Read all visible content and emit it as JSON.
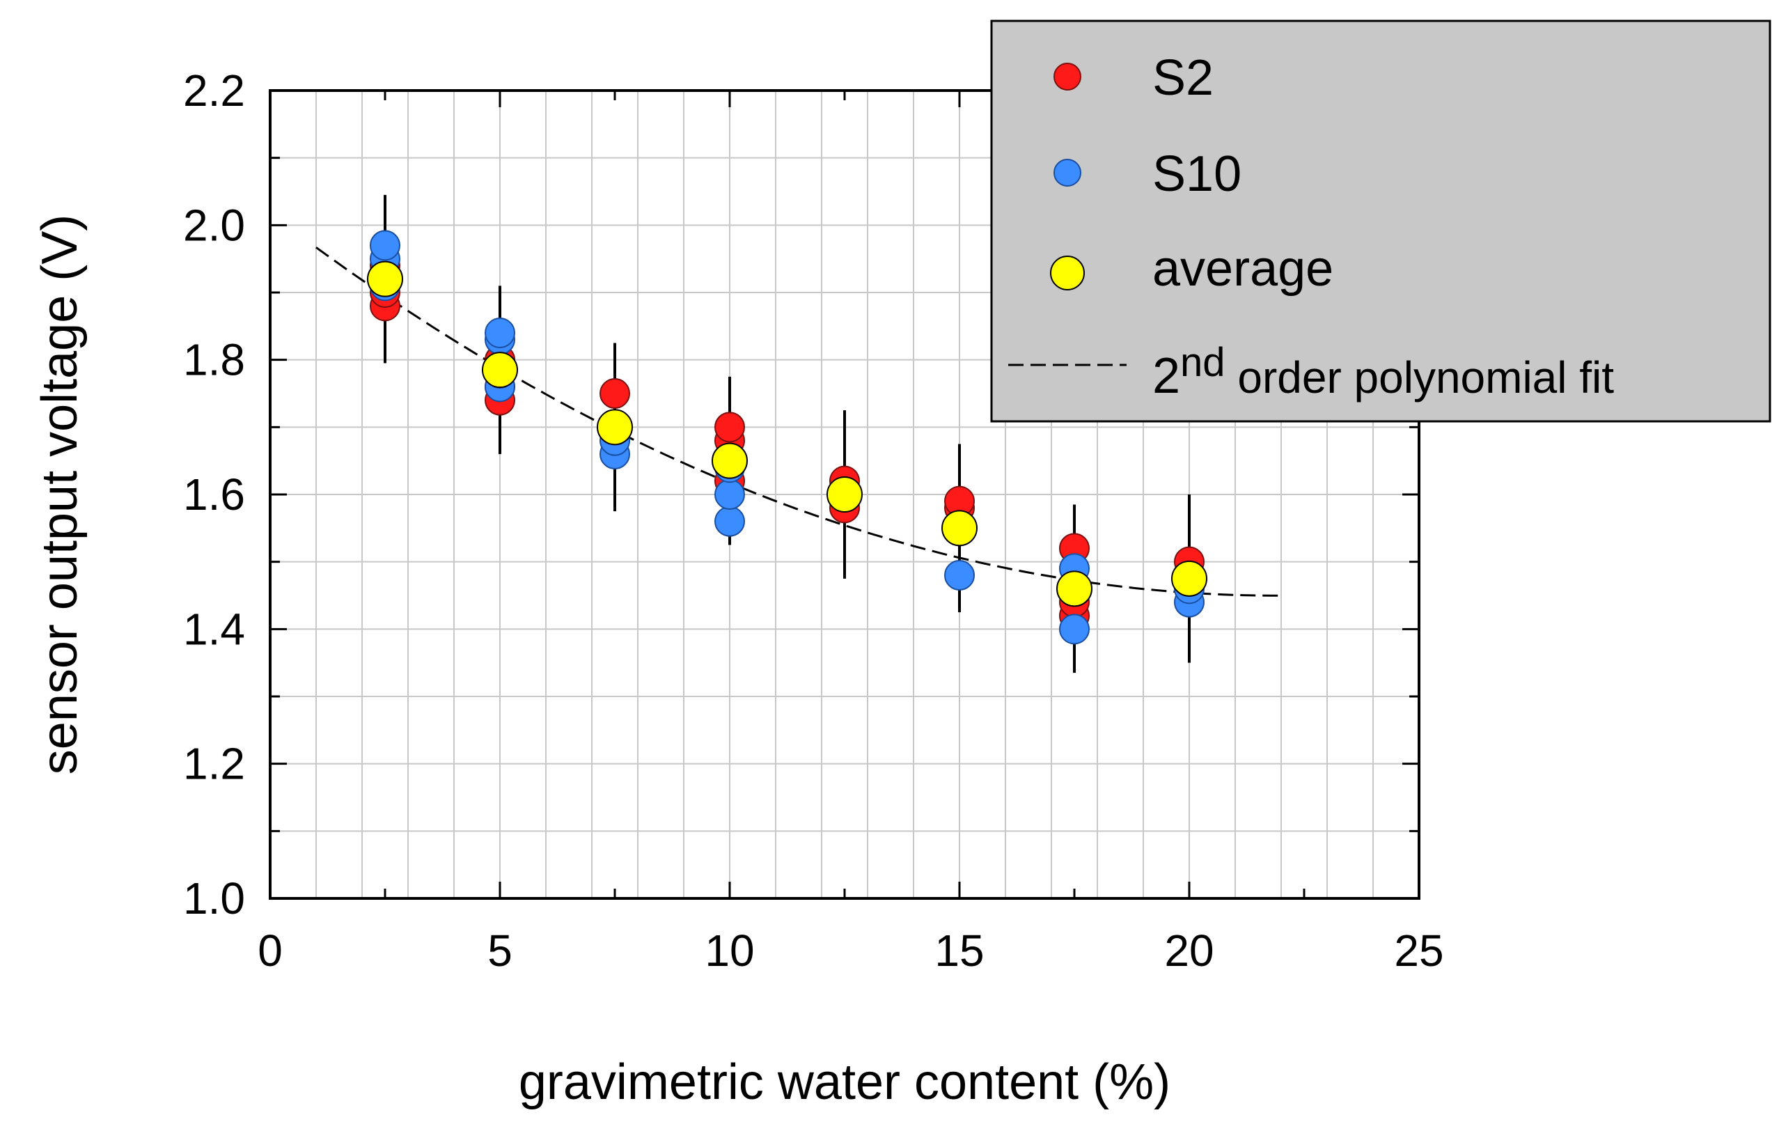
{
  "chart_data": {
    "type": "scatter",
    "xlabel": "gravimetric water content (%)",
    "ylabel": "sensor output voltage (V)",
    "xlim": [
      0,
      25
    ],
    "ylim": [
      1.0,
      2.2
    ],
    "x_ticks": [
      "0",
      "5",
      "10",
      "15",
      "20",
      "25"
    ],
    "y_ticks": [
      "1.0",
      "1.2",
      "1.4",
      "1.6",
      "1.8",
      "2.0",
      "2.2"
    ],
    "grid": true,
    "legend_position": "top-right",
    "legend": {
      "s2": "S2",
      "s10": "S10",
      "average": "average",
      "fit_main": "2",
      "fit_sup": "nd",
      "fit_rest": " order polynomial fit"
    },
    "colors": {
      "s2": "#ff1a1a",
      "s10": "#3b8cff",
      "average": "#ffff00",
      "legend_bg": "#c8c8c8",
      "grid": "#c8c8c8"
    },
    "series": [
      {
        "name": "S2",
        "points": [
          [
            2.5,
            1.88
          ],
          [
            2.5,
            1.9
          ],
          [
            2.5,
            1.92
          ],
          [
            2.5,
            1.94
          ],
          [
            5,
            1.74
          ],
          [
            5,
            1.76
          ],
          [
            5,
            1.8
          ],
          [
            7.5,
            1.75
          ],
          [
            10,
            1.62
          ],
          [
            10,
            1.65
          ],
          [
            10,
            1.68
          ],
          [
            10,
            1.7
          ],
          [
            12.5,
            1.58
          ],
          [
            12.5,
            1.6
          ],
          [
            12.5,
            1.62
          ],
          [
            15,
            1.58
          ],
          [
            15,
            1.59
          ],
          [
            17.5,
            1.42
          ],
          [
            17.5,
            1.44
          ],
          [
            17.5,
            1.52
          ],
          [
            20,
            1.48
          ],
          [
            20,
            1.5
          ]
        ]
      },
      {
        "name": "S10",
        "points": [
          [
            2.5,
            1.91
          ],
          [
            2.5,
            1.95
          ],
          [
            2.5,
            1.97
          ],
          [
            5,
            1.76
          ],
          [
            5,
            1.78
          ],
          [
            5,
            1.83
          ],
          [
            5,
            1.84
          ],
          [
            7.5,
            1.66
          ],
          [
            7.5,
            1.68
          ],
          [
            10,
            1.56
          ],
          [
            10,
            1.6
          ],
          [
            10,
            1.64
          ],
          [
            12.5,
            1.6
          ],
          [
            15,
            1.48
          ],
          [
            17.5,
            1.4
          ],
          [
            17.5,
            1.49
          ],
          [
            20,
            1.44
          ],
          [
            20,
            1.46
          ]
        ]
      },
      {
        "name": "average",
        "points": [
          [
            2.5,
            1.92
          ],
          [
            5,
            1.785
          ],
          [
            7.5,
            1.7
          ],
          [
            10,
            1.65
          ],
          [
            12.5,
            1.6
          ],
          [
            15,
            1.55
          ],
          [
            17.5,
            1.46
          ],
          [
            20,
            1.475
          ]
        ],
        "error": [
          [
            1.795,
            2.045
          ],
          [
            1.66,
            1.91
          ],
          [
            1.575,
            1.825
          ],
          [
            1.525,
            1.775
          ],
          [
            1.475,
            1.725
          ],
          [
            1.425,
            1.675
          ],
          [
            1.335,
            1.585
          ],
          [
            1.35,
            1.6
          ]
        ]
      },
      {
        "name": "2nd order polynomial fit",
        "style": "dashed",
        "coefficients": [
          2.0176,
          -0.0519,
          0.001186
        ],
        "x_range": [
          1,
          22
        ]
      }
    ]
  }
}
